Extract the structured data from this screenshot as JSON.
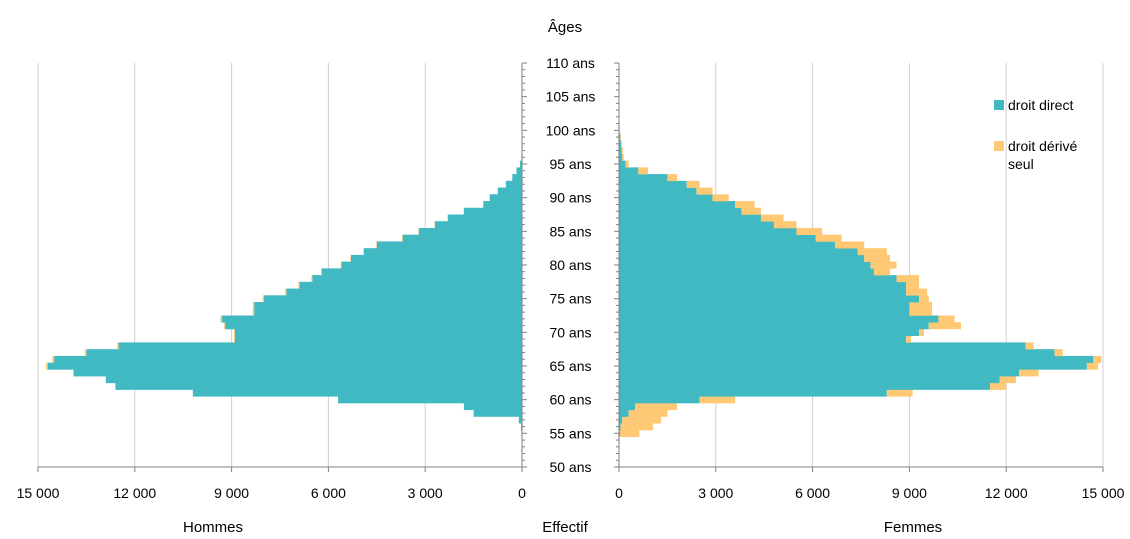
{
  "chart_data": {
    "type": "bar",
    "subtype": "population-pyramid",
    "title": "Âges",
    "xlabel_center": "Effectif",
    "left_panel_label": "Hommes",
    "right_panel_label": "Femmes",
    "x_ticks": [
      "15 000",
      "12 000",
      "9 000",
      "6 000",
      "3 000",
      "0"
    ],
    "x_max": 15000,
    "y_ticks": [
      "50 ans",
      "55 ans",
      "60 ans",
      "65 ans",
      "70 ans",
      "75 ans",
      "80 ans",
      "85 ans",
      "90 ans",
      "95 ans",
      "100 ans",
      "105 ans",
      "110 ans"
    ],
    "y_range": [
      50,
      110
    ],
    "grid": true,
    "legend_position": "top-right",
    "colors": {
      "direct": "#40B9C3",
      "derive": "#FFC875",
      "grid": "#d0d0d0",
      "axis": "#808080"
    },
    "series": [
      {
        "key": "direct",
        "name": "droit direct"
      },
      {
        "key": "derive",
        "name": "droit dérivé seul"
      }
    ],
    "ages": [
      55,
      56,
      57,
      58,
      59,
      60,
      61,
      62,
      63,
      64,
      65,
      66,
      67,
      68,
      69,
      70,
      71,
      72,
      73,
      74,
      75,
      76,
      77,
      78,
      79,
      80,
      81,
      82,
      83,
      84,
      85,
      86,
      87,
      88,
      89,
      90,
      91,
      92,
      93,
      94,
      95,
      96,
      97,
      98,
      99,
      100,
      101,
      102
    ],
    "hommes_direct": [
      20,
      30,
      100,
      1500,
      1800,
      5700,
      10200,
      12600,
      12900,
      13900,
      14700,
      14500,
      13500,
      12500,
      8900,
      8900,
      9200,
      9300,
      8300,
      8300,
      8000,
      7300,
      6900,
      6500,
      6200,
      5600,
      5300,
      4900,
      4500,
      3700,
      3200,
      2700,
      2300,
      1800,
      1200,
      1000,
      750,
      500,
      300,
      170,
      60,
      20,
      10,
      0,
      0,
      0,
      0,
      0
    ],
    "hommes_derive": [
      0,
      0,
      0,
      0,
      0,
      0,
      0,
      0,
      0,
      0,
      50,
      60,
      50,
      50,
      30,
      30,
      30,
      50,
      50,
      40,
      40,
      40,
      30,
      30,
      30,
      20,
      20,
      20,
      20,
      20,
      10,
      10,
      10,
      10,
      10,
      0,
      0,
      0,
      0,
      0,
      0,
      0,
      0,
      0,
      0,
      0,
      0,
      0
    ],
    "femmes_direct": [
      30,
      50,
      100,
      300,
      500,
      2500,
      8300,
      11500,
      11800,
      12400,
      14500,
      14700,
      13500,
      12600,
      8900,
      9300,
      9600,
      9900,
      9000,
      9000,
      9300,
      8900,
      8900,
      8600,
      7900,
      7800,
      7600,
      7400,
      6700,
      6100,
      5500,
      4800,
      4400,
      3800,
      3600,
      2900,
      2400,
      2100,
      1500,
      600,
      200,
      100,
      80,
      60,
      40,
      20,
      10,
      0
    ],
    "femmes_derive": [
      600,
      1000,
      1200,
      1200,
      1300,
      1100,
      800,
      500,
      500,
      600,
      350,
      250,
      250,
      250,
      150,
      150,
      1000,
      500,
      700,
      700,
      300,
      650,
      400,
      700,
      500,
      800,
      800,
      900,
      900,
      800,
      800,
      700,
      700,
      600,
      600,
      500,
      500,
      400,
      300,
      300,
      100,
      50,
      40,
      30,
      20,
      10,
      0,
      0
    ]
  }
}
